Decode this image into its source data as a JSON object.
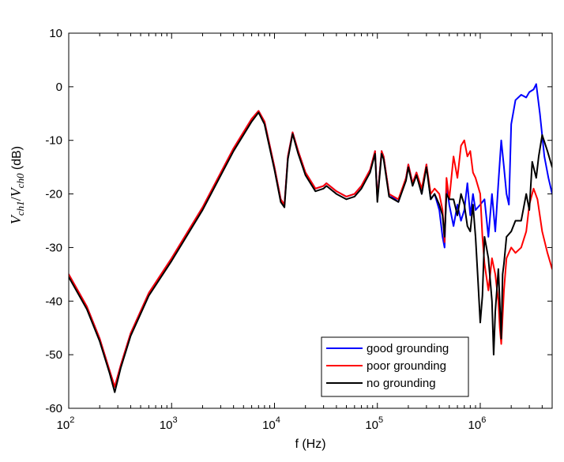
{
  "chart_data": {
    "type": "line",
    "title": "",
    "xlabel": "f  (Hz)",
    "ylabel": {
      "prefix": "V",
      "num_sub": "ch1",
      "slash": "/",
      "den": "V",
      "den_sub": "ch0",
      "unit": " (dB)"
    },
    "x_scale": "log",
    "xlim": [
      100,
      5000000
    ],
    "ylim": [
      -60,
      10
    ],
    "x_ticks": [
      {
        "value": 100,
        "base": "10",
        "exp": "2"
      },
      {
        "value": 1000,
        "base": "10",
        "exp": "3"
      },
      {
        "value": 10000,
        "base": "10",
        "exp": "4"
      },
      {
        "value": 100000,
        "base": "10",
        "exp": "5"
      },
      {
        "value": 1000000,
        "base": "10",
        "exp": "6"
      }
    ],
    "y_ticks": [
      10,
      0,
      -10,
      -20,
      -30,
      -40,
      -50,
      -60
    ],
    "grid": false,
    "legend_position": "bottom-right",
    "series": [
      {
        "name": "good grounding",
        "color": "#0000ff",
        "x": [
          100,
          150,
          200,
          250,
          280,
          320,
          400,
          600,
          1000,
          2000,
          4000,
          6000,
          7000,
          8000,
          10000,
          11500,
          12500,
          13500,
          15000,
          17000,
          20000,
          25000,
          30000,
          32000,
          40000,
          50000,
          60000,
          70000,
          85000,
          95000,
          100000,
          110000,
          115000,
          130000,
          160000,
          190000,
          200000,
          220000,
          240000,
          270000,
          300000,
          330000,
          360000,
          400000,
          430000,
          450000,
          470000,
          500000,
          550000,
          600000,
          650000,
          700000,
          750000,
          800000,
          850000,
          900000,
          1000000,
          1100000,
          1200000,
          1300000,
          1400000,
          1500000,
          1600000,
          1700000,
          1800000,
          1900000,
          2000000,
          2200000,
          2500000,
          2800000,
          3000000,
          3300000,
          3500000,
          3800000,
          4200000,
          4600000,
          5000000
        ],
        "y": [
          -35,
          -41,
          -47,
          -53,
          -56,
          -52,
          -46,
          -38.5,
          -32,
          -22.5,
          -11.5,
          -6,
          -4.5,
          -6.5,
          -15,
          -21,
          -22,
          -13,
          -8.5,
          -12,
          -16,
          -19,
          -18.5,
          -18,
          -19.5,
          -20.5,
          -20,
          -18.5,
          -15.5,
          -12,
          -21,
          -12,
          -13,
          -20,
          -21.5,
          -17,
          -14.5,
          -18,
          -16,
          -20,
          -14.5,
          -21,
          -20,
          -23,
          -28,
          -30,
          -18,
          -22,
          -26,
          -22,
          -25,
          -23,
          -18,
          -24,
          -20,
          -23,
          -22,
          -21,
          -28,
          -20,
          -27,
          -18,
          -10,
          -15,
          -20,
          -22,
          -7,
          -2.5,
          -1.5,
          -2,
          -1,
          -0.5,
          0.5,
          -5,
          -13,
          -17,
          -20
        ]
      },
      {
        "name": "poor grounding",
        "color": "#ff0000",
        "x": [
          100,
          150,
          200,
          250,
          280,
          320,
          400,
          600,
          1000,
          2000,
          4000,
          6000,
          7000,
          8000,
          10000,
          11500,
          12500,
          13500,
          15000,
          17000,
          20000,
          25000,
          30000,
          32000,
          40000,
          50000,
          60000,
          70000,
          85000,
          95000,
          100000,
          110000,
          115000,
          130000,
          160000,
          190000,
          200000,
          220000,
          240000,
          270000,
          300000,
          330000,
          360000,
          400000,
          430000,
          450000,
          470000,
          500000,
          550000,
          600000,
          650000,
          700000,
          750000,
          800000,
          850000,
          900000,
          1000000,
          1050000,
          1100000,
          1200000,
          1300000,
          1400000,
          1500000,
          1550000,
          1600000,
          1700000,
          1800000,
          2000000,
          2200000,
          2500000,
          2800000,
          3000000,
          3300000,
          3600000,
          4000000,
          4500000,
          5000000
        ],
        "y": [
          -35,
          -41,
          -47,
          -53,
          -56,
          -52,
          -46,
          -38.5,
          -32,
          -22.5,
          -11.5,
          -6,
          -4.5,
          -6.5,
          -15,
          -21,
          -22,
          -13,
          -8.5,
          -12,
          -16,
          -19,
          -18.5,
          -18,
          -19.5,
          -20.5,
          -20,
          -18.5,
          -15.5,
          -12,
          -21,
          -12,
          -13,
          -20,
          -21,
          -17,
          -14.5,
          -18,
          -16,
          -19,
          -14.5,
          -20,
          -19,
          -20,
          -23,
          -29,
          -17,
          -21,
          -13,
          -17,
          -11,
          -10,
          -13,
          -12,
          -16,
          -17,
          -20,
          -28,
          -33,
          -38,
          -32,
          -35,
          -40,
          -45,
          -48,
          -38,
          -32,
          -30,
          -31,
          -30,
          -27,
          -22,
          -19,
          -21,
          -27,
          -31,
          -34
        ]
      },
      {
        "name": "no grounding",
        "color": "#000000",
        "x": [
          100,
          150,
          200,
          250,
          280,
          320,
          400,
          600,
          1000,
          2000,
          4000,
          6000,
          7000,
          8000,
          10000,
          11500,
          12500,
          13500,
          15000,
          17000,
          20000,
          25000,
          30000,
          32000,
          40000,
          50000,
          60000,
          70000,
          85000,
          95000,
          100000,
          110000,
          115000,
          130000,
          160000,
          190000,
          200000,
          220000,
          240000,
          270000,
          300000,
          330000,
          360000,
          400000,
          430000,
          450000,
          470000,
          500000,
          550000,
          600000,
          650000,
          700000,
          750000,
          800000,
          850000,
          900000,
          950000,
          1000000,
          1050000,
          1100000,
          1150000,
          1200000,
          1300000,
          1350000,
          1400000,
          1500000,
          1600000,
          1650000,
          1700000,
          1800000,
          2000000,
          2200000,
          2500000,
          2800000,
          3000000,
          3200000,
          3500000,
          3700000,
          4000000,
          4500000,
          5000000
        ],
        "y": [
          -35.5,
          -41.5,
          -47.5,
          -53.5,
          -57,
          -52.5,
          -46.5,
          -39,
          -32.5,
          -23,
          -12,
          -6.5,
          -4.8,
          -7,
          -15.5,
          -21.5,
          -22.5,
          -13.5,
          -8.8,
          -12.5,
          -16.5,
          -19.5,
          -19,
          -18.5,
          -20,
          -21,
          -20.5,
          -19,
          -16,
          -12.5,
          -21.5,
          -12.5,
          -13.5,
          -20.5,
          -21.5,
          -17.5,
          -15,
          -18.5,
          -16.5,
          -20,
          -15,
          -21,
          -20,
          -22,
          -24,
          -28,
          -20,
          -21,
          -21,
          -24,
          -20,
          -22,
          -26,
          -27,
          -22,
          -28,
          -36,
          -44,
          -39,
          -28,
          -30,
          -32,
          -40,
          -50,
          -42,
          -34,
          -47,
          -35,
          -33,
          -28,
          -27,
          -25,
          -25,
          -20,
          -23,
          -14,
          -17,
          -13,
          -9,
          -12,
          -15
        ]
      }
    ]
  }
}
